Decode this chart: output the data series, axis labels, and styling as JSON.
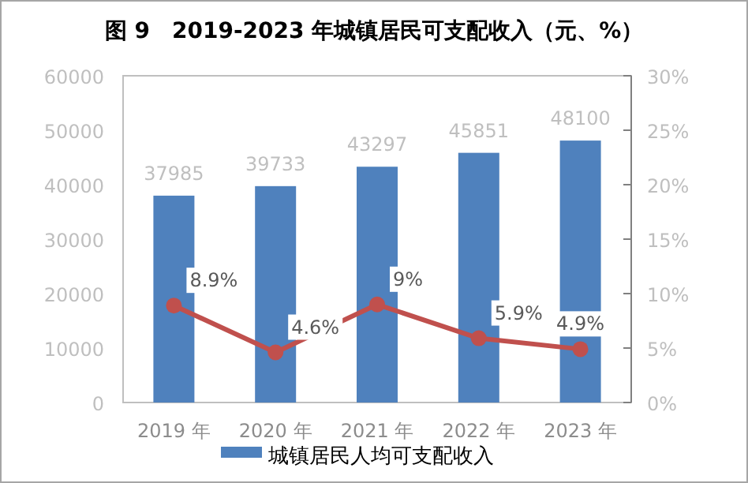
{
  "chart_data": {
    "type": "bar",
    "title": "图 9　2019-2023 年城镇居民可支配收入（元、%）",
    "categories": [
      "2019 年",
      "2020 年",
      "2021 年",
      "2022 年",
      "2023 年"
    ],
    "series": [
      {
        "name": "城镇居民人均可支配收入",
        "color": "#4f81bd",
        "values": [
          37985,
          39733,
          43297,
          45851,
          48100
        ],
        "value_labels": [
          "37985",
          "39733",
          "43297",
          "45851",
          "48100"
        ]
      },
      {
        "type": "line",
        "axis": "y2",
        "color": "#c0504d",
        "marker": "circle",
        "values": [
          8.9,
          4.6,
          9,
          5.9,
          4.9
        ],
        "value_labels": [
          "8.9%",
          "4.6%",
          "9%",
          "5.9%",
          "4.9%"
        ]
      }
    ],
    "ylim": [
      0,
      60000
    ],
    "yticks": [
      0,
      10000,
      20000,
      30000,
      40000,
      50000,
      60000
    ],
    "y2lim": [
      0,
      30
    ],
    "y2ticks": [
      {
        "value": 0,
        "label": "0%"
      },
      {
        "value": 5,
        "label": "5%"
      },
      {
        "value": 10,
        "label": "10%"
      },
      {
        "value": 15,
        "label": "15%"
      },
      {
        "value": 20,
        "label": "20%"
      },
      {
        "value": 25,
        "label": "25%"
      },
      {
        "value": 30,
        "label": "30%"
      }
    ],
    "grid": false,
    "legend": "bottom"
  }
}
